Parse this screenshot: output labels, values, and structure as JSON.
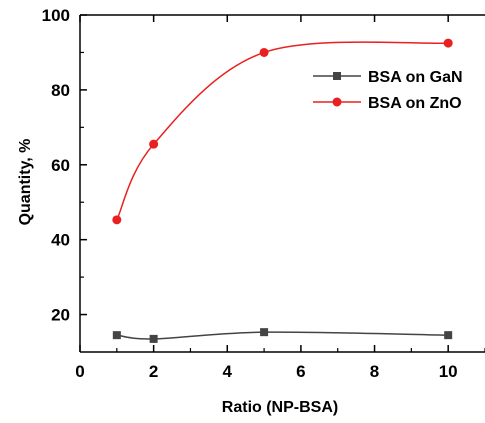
{
  "chart_data": {
    "type": "line",
    "xlabel": "Ratio (NP-BSA)",
    "ylabel": "Quantity, %",
    "xlim": [
      0,
      11
    ],
    "ylim": [
      10,
      100
    ],
    "x_ticks": [
      0,
      2,
      4,
      6,
      8,
      10
    ],
    "x_tick_labels": [
      "0",
      "2",
      "4",
      "6",
      "8",
      "10"
    ],
    "y_ticks": [
      20,
      40,
      60,
      80,
      100
    ],
    "y_tick_labels": [
      "20",
      "40",
      "60",
      "80",
      "100"
    ],
    "grid": false,
    "legend_position": "top-right",
    "series": [
      {
        "name": "BSA on GaN",
        "legend_text": "BSA on GaN",
        "color": "#444444",
        "marker": "square",
        "x": [
          1,
          2,
          5,
          10
        ],
        "y": [
          14.5,
          13.5,
          15.3,
          14.5
        ]
      },
      {
        "name": "BSA on ZnO",
        "legend_text": "BSA on ZnO",
        "color": "#e8201f",
        "marker": "circle",
        "x": [
          1,
          2,
          5,
          10
        ],
        "y": [
          45.3,
          65.5,
          90,
          92.5
        ]
      }
    ]
  }
}
